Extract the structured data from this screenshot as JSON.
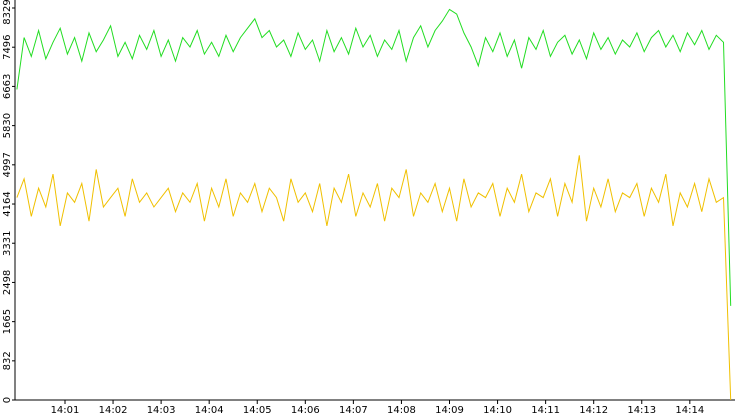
{
  "chart_data": {
    "type": "line",
    "xlim": [
      839.96,
      854.94
    ],
    "ylim": [
      0,
      8329
    ],
    "yticks": [
      0,
      832,
      1665,
      2498,
      3331,
      4164,
      4997,
      5830,
      6663,
      7496,
      8329
    ],
    "xticks": [
      {
        "value": 841,
        "label": "14:01"
      },
      {
        "value": 842,
        "label": "14:02"
      },
      {
        "value": 843,
        "label": "14:03"
      },
      {
        "value": 844,
        "label": "14:04"
      },
      {
        "value": 845,
        "label": "14:05"
      },
      {
        "value": 846,
        "label": "14:06"
      },
      {
        "value": 847,
        "label": "14:07"
      },
      {
        "value": 848,
        "label": "14:08"
      },
      {
        "value": 849,
        "label": "14:09"
      },
      {
        "value": 850,
        "label": "14:10"
      },
      {
        "value": 851,
        "label": "14:11"
      },
      {
        "value": 852,
        "label": "14:12"
      },
      {
        "value": 853,
        "label": "14:13"
      },
      {
        "value": 854,
        "label": "14:14"
      }
    ],
    "x": [
      840.0,
      840.15,
      840.3,
      840.45,
      840.6,
      840.75,
      840.9,
      841.05,
      841.2,
      841.35,
      841.5,
      841.65,
      841.8,
      841.95,
      842.1,
      842.25,
      842.4,
      842.55,
      842.7,
      842.85,
      843.0,
      843.15,
      843.3,
      843.45,
      843.6,
      843.75,
      843.9,
      844.05,
      844.2,
      844.35,
      844.5,
      844.65,
      844.8,
      844.95,
      845.1,
      845.25,
      845.4,
      845.55,
      845.7,
      845.85,
      846.0,
      846.15,
      846.3,
      846.45,
      846.6,
      846.75,
      846.9,
      847.05,
      847.2,
      847.35,
      847.5,
      847.65,
      847.8,
      847.95,
      848.1,
      848.25,
      848.4,
      848.55,
      848.7,
      848.85,
      849.0,
      849.15,
      849.3,
      849.45,
      849.6,
      849.75,
      849.9,
      850.05,
      850.2,
      850.35,
      850.5,
      850.65,
      850.8,
      850.95,
      851.1,
      851.25,
      851.4,
      851.55,
      851.7,
      851.85,
      852.0,
      852.15,
      852.3,
      852.45,
      852.6,
      852.75,
      852.9,
      853.05,
      853.2,
      853.35,
      853.5,
      853.65,
      853.8,
      853.95,
      854.1,
      854.25,
      854.4,
      854.55,
      854.7,
      854.85
    ],
    "series": [
      {
        "color": "#22dd22",
        "values": [
          6600,
          7700,
          7300,
          7850,
          7250,
          7600,
          7900,
          7350,
          7700,
          7200,
          7800,
          7400,
          7650,
          7950,
          7300,
          7600,
          7250,
          7750,
          7450,
          7850,
          7300,
          7650,
          7200,
          7700,
          7500,
          7850,
          7350,
          7600,
          7300,
          7750,
          7400,
          7700,
          7900,
          8100,
          7700,
          7850,
          7500,
          7650,
          7300,
          7800,
          7450,
          7650,
          7200,
          7850,
          7400,
          7700,
          7350,
          7900,
          7500,
          7750,
          7300,
          7650,
          7450,
          7850,
          7200,
          7700,
          7950,
          7500,
          7850,
          8050,
          8300,
          8200,
          7800,
          7500,
          7100,
          7700,
          7400,
          7800,
          7300,
          7650,
          7050,
          7700,
          7450,
          7850,
          7300,
          7600,
          7750,
          7350,
          7650,
          7250,
          7800,
          7450,
          7700,
          7350,
          7650,
          7500,
          7800,
          7400,
          7700,
          7850,
          7500,
          7750,
          7400,
          7800,
          7550,
          7850,
          7450,
          7750,
          7600,
          2000
        ]
      },
      {
        "color": "#f0c000",
        "values": [
          4300,
          4700,
          3900,
          4500,
          4100,
          4800,
          3700,
          4400,
          4200,
          4600,
          3800,
          4900,
          4100,
          4300,
          4500,
          3900,
          4700,
          4200,
          4400,
          4100,
          4300,
          4500,
          4000,
          4400,
          4200,
          4600,
          3800,
          4500,
          4100,
          4700,
          3900,
          4400,
          4200,
          4600,
          4000,
          4500,
          4300,
          3800,
          4700,
          4200,
          4400,
          4000,
          4600,
          3700,
          4500,
          4200,
          4800,
          3900,
          4400,
          4100,
          4600,
          3800,
          4500,
          4300,
          4900,
          3900,
          4400,
          4200,
          4600,
          4000,
          4500,
          3800,
          4700,
          4100,
          4400,
          4300,
          4600,
          3900,
          4500,
          4200,
          4800,
          4000,
          4400,
          4300,
          4700,
          3900,
          4600,
          4200,
          5200,
          3800,
          4500,
          4100,
          4700,
          4000,
          4400,
          4300,
          4600,
          3900,
          4500,
          4200,
          4800,
          3700,
          4400,
          4100,
          4600,
          4000,
          4700,
          4200,
          4300,
          0
        ]
      }
    ]
  }
}
